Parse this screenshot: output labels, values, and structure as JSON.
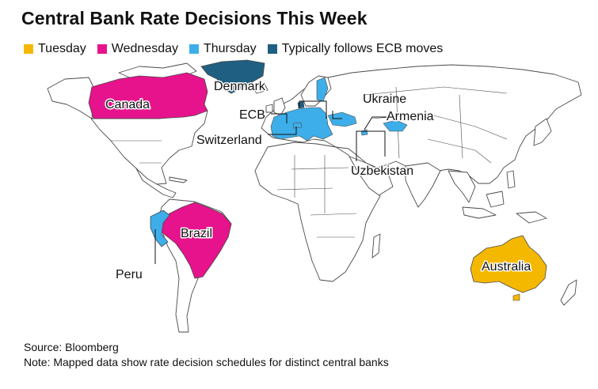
{
  "title": "Central Bank Rate Decisions This Week",
  "legend": [
    {
      "label": "Tuesday",
      "color": "#f5b800"
    },
    {
      "label": "Wednesday",
      "color": "#e6138c"
    },
    {
      "label": "Thursday",
      "color": "#3daee9"
    },
    {
      "label": "Typically follows ECB moves",
      "color": "#1f5f82"
    }
  ],
  "map_labels": {
    "canada": "Canada",
    "denmark": "Denmark",
    "ukraine": "Ukraine",
    "ecb": "ECB",
    "armenia": "Armenia",
    "switzerland": "Switzerland",
    "uzbekistan": "Uzbekistan",
    "brazil": "Brazil",
    "peru": "Peru",
    "australia": "Australia"
  },
  "regions": {
    "canada": {
      "day": "Wednesday",
      "color": "#e6138c"
    },
    "brazil": {
      "day": "Wednesday",
      "color": "#e6138c"
    },
    "australia": {
      "day": "Tuesday",
      "color": "#f5b800"
    },
    "peru": {
      "day": "Thursday",
      "color": "#3daee9"
    },
    "ecb": {
      "day": "Thursday",
      "color": "#3daee9"
    },
    "switzerland": {
      "day": "Thursday",
      "color": "#3daee9"
    },
    "ukraine": {
      "day": "Thursday",
      "color": "#3daee9"
    },
    "armenia": {
      "day": "Thursday",
      "color": "#3daee9"
    },
    "uzbekistan": {
      "day": "Thursday",
      "color": "#3daee9"
    },
    "denmark": {
      "day": "Typically follows ECB moves",
      "color": "#1f5f82"
    }
  },
  "source": "Source: Bloomberg",
  "note": "Note: Mapped data show rate decision schedules for distinct central banks"
}
